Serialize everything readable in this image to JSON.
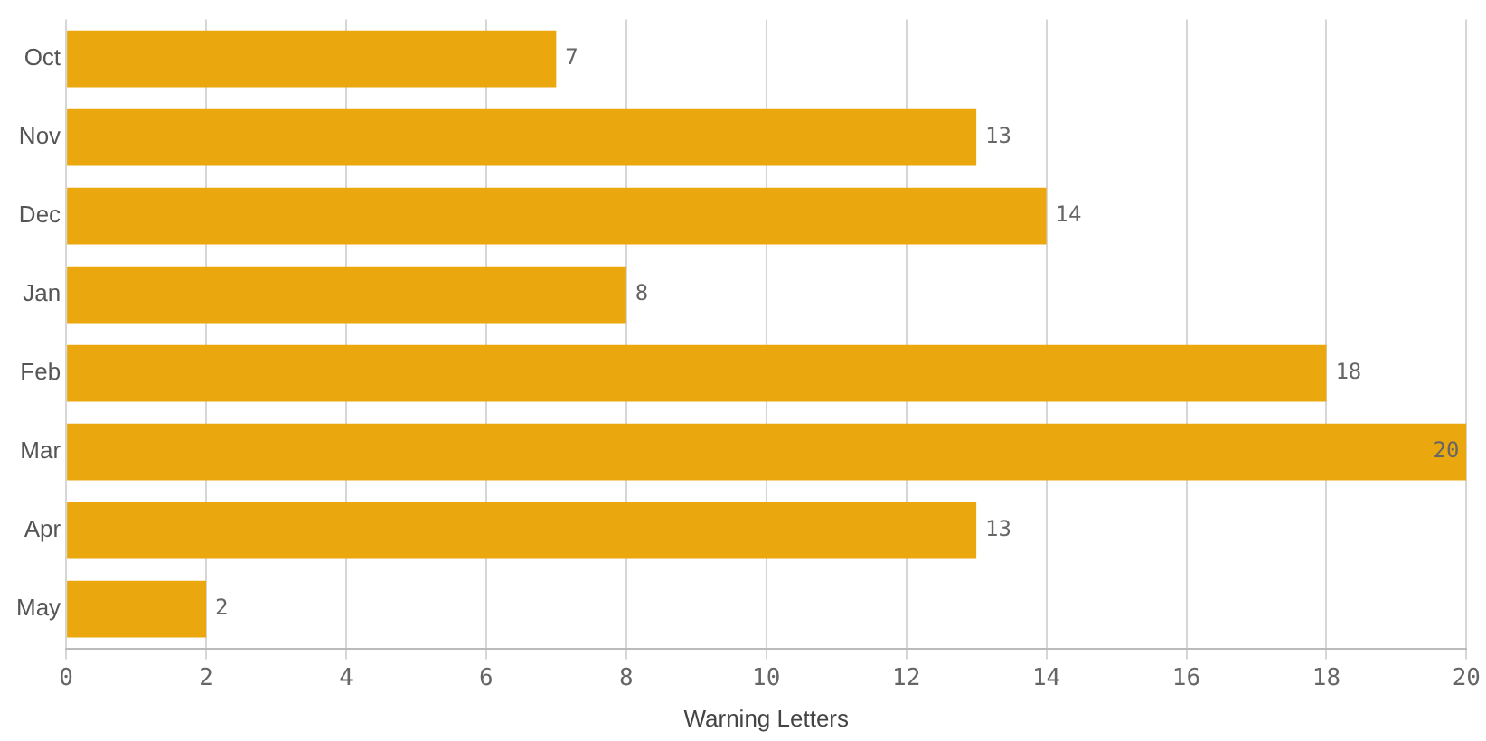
{
  "chart_data": {
    "type": "bar",
    "orientation": "horizontal",
    "xlabel": "Warning Letters",
    "categories": [
      "Oct",
      "Nov",
      "Dec",
      "Jan",
      "Feb",
      "Mar",
      "Apr",
      "May"
    ],
    "values": [
      7,
      13,
      14,
      8,
      18,
      20,
      13,
      2
    ],
    "color": "#eba70e",
    "xlim": [
      0,
      20
    ],
    "xticks": [
      0,
      2,
      4,
      6,
      8,
      10,
      12,
      14,
      16,
      18,
      20
    ],
    "grid": "x",
    "data_labels": true
  }
}
